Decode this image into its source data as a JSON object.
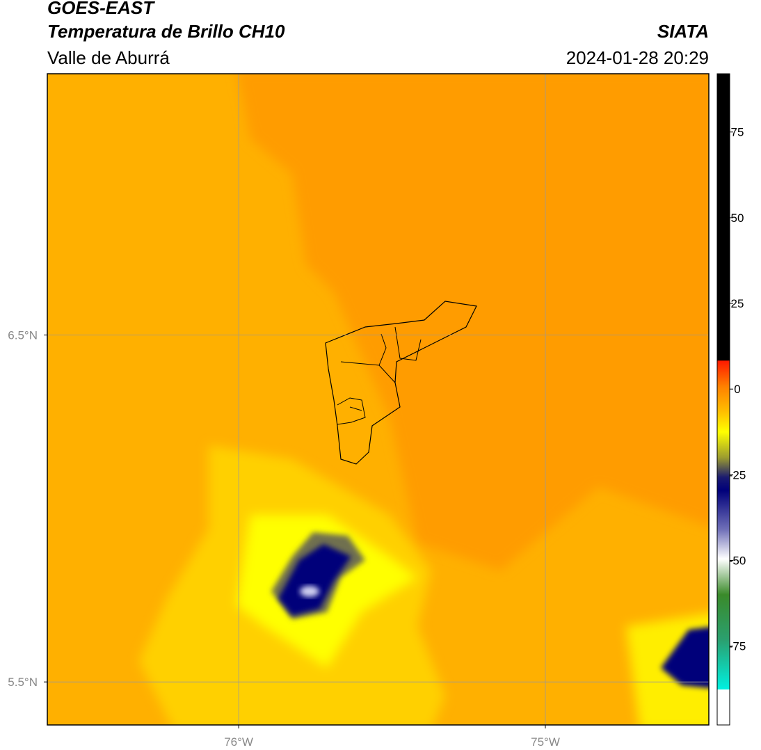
{
  "header": {
    "title": "GOES-EAST",
    "subtitle": "Temperatura de Brillo CH10",
    "region": "Valle de Aburrá",
    "source": "SIATA",
    "datetime": "2024-01-28 20:29"
  },
  "map": {
    "xlim": [
      -76.624,
      -74.467
    ],
    "ylim": [
      5.376,
      7.253
    ],
    "xticks": [
      {
        "value": -76,
        "label": "76°W"
      },
      {
        "value": -75,
        "label": "75°W"
      }
    ],
    "yticks": [
      {
        "value": 6.5,
        "label": "6.5°N"
      },
      {
        "value": 5.5,
        "label": "5.5°N"
      }
    ],
    "grid": true
  },
  "colorbar": {
    "lim": [
      -98,
      92
    ],
    "ticks": [
      75,
      50,
      25,
      0,
      -25,
      -50,
      -75
    ]
  }
}
